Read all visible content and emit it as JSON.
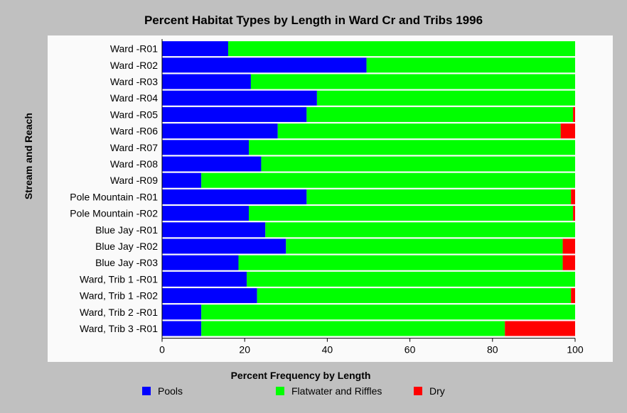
{
  "chart_data": {
    "type": "bar",
    "orientation": "horizontal",
    "stacked": true,
    "title": "Percent Habitat Types by Length in Ward Cr and Tribs 1996",
    "xlabel": "Percent Frequency by Length",
    "ylabel": "Stream and Reach",
    "xlim": [
      0,
      100
    ],
    "xticks": [
      "0",
      "20",
      "40",
      "60",
      "80",
      "100"
    ],
    "legend_position": "bottom",
    "categories": [
      "Ward -R01",
      "Ward -R02",
      "Ward -R03",
      "Ward -R04",
      "Ward -R05",
      "Ward -R06",
      "Ward -R07",
      "Ward -R08",
      "Ward -R09",
      "Pole Mountain -R01",
      "Pole Mountain -R02",
      "Blue Jay -R01",
      "Blue Jay -R02",
      "Blue Jay -R03",
      "Ward, Trib 1 -R01",
      "Ward, Trib 1 -R02",
      "Ward, Trib 2 -R01",
      "Ward, Trib 3 -R01"
    ],
    "series": [
      {
        "name": "Pools",
        "color": "#0000ff",
        "values": [
          16,
          49.5,
          21.5,
          37.5,
          35,
          28,
          21,
          24,
          9.5,
          35,
          21,
          25,
          30,
          18.5,
          20.5,
          23,
          9.5,
          9.5
        ]
      },
      {
        "name": "Flatwater and Riffles",
        "color": "#00ff00",
        "values": [
          84,
          50.5,
          78.5,
          62.5,
          64.5,
          68.5,
          79,
          76,
          90.5,
          64,
          78.5,
          75,
          67,
          78.5,
          79.5,
          76,
          90.5,
          73.5
        ]
      },
      {
        "name": "Dry",
        "color": "#ff0000",
        "values": [
          0,
          0,
          0,
          0,
          0.5,
          3.5,
          0,
          0,
          0,
          1,
          0.5,
          0,
          3,
          3,
          0,
          1,
          0,
          17
        ]
      }
    ]
  }
}
